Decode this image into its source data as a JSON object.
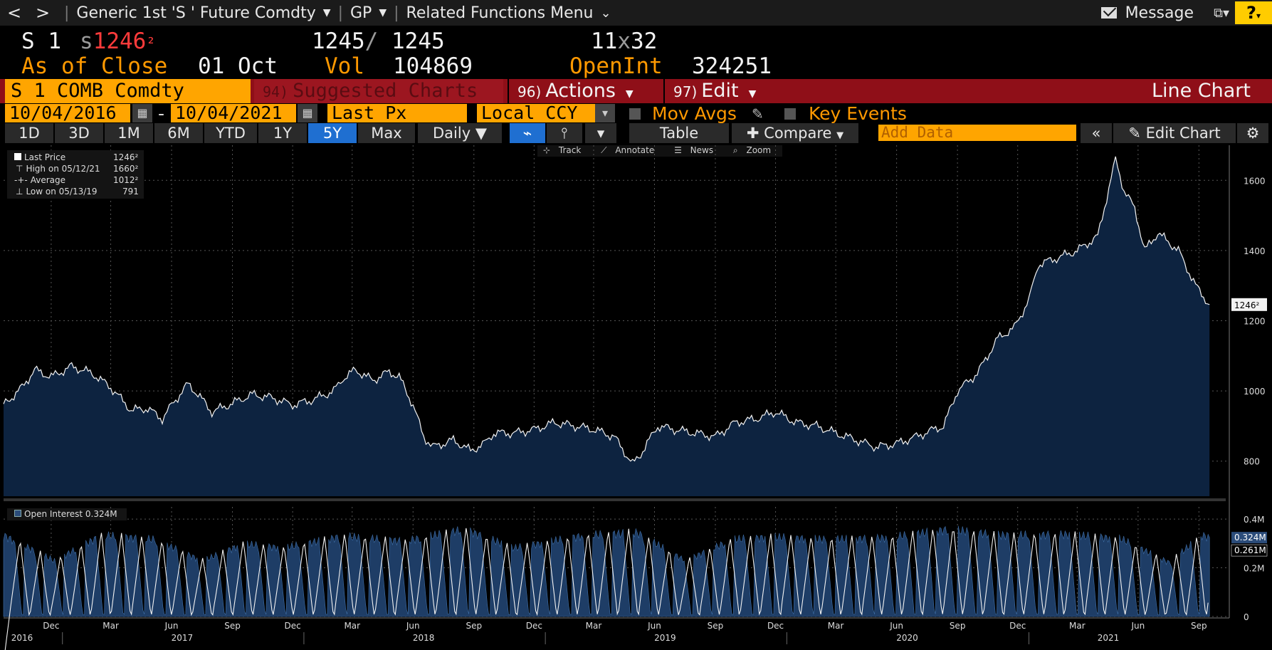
{
  "topbar": {
    "back": "<",
    "forward": ">",
    "security": "Generic 1st 'S ' Future Comdty",
    "gp": "GP",
    "related": "Related Functions Menu",
    "message": "Message",
    "help": "?"
  },
  "quote": {
    "ticker": "S 1",
    "tick_prefix": "s",
    "last_whole": "1246",
    "last_frac": "²",
    "bid": "1245",
    "slash": "/",
    "ask": "1245",
    "size_bid": "11",
    "size_x": "x",
    "size_ask": "32",
    "as_of_label": "As of Close",
    "as_of_date": "01 Oct",
    "vol_label": "Vol",
    "vol_value": "104869",
    "oi_label": "OpenInt",
    "oi_value": "324251"
  },
  "actionbar": {
    "ticker": "S 1 COMB Comdty",
    "suggested_num": "94)",
    "suggested": "Suggested Charts",
    "actions_num": "96)",
    "actions": "Actions",
    "edit_num": "97)",
    "edit": "Edit",
    "chart_type": "Line Chart"
  },
  "daterow": {
    "start": "10/04/2016",
    "dash": "-",
    "end": "10/04/2021",
    "field": "Last Px",
    "currency": "Local CCY",
    "mov_avgs": "Mov Avgs",
    "key_events": "Key Events"
  },
  "toolbar": {
    "periods": [
      "1D",
      "3D",
      "1M",
      "6M",
      "YTD",
      "1Y",
      "5Y",
      "Max"
    ],
    "active_period": "5Y",
    "frequency": "Daily",
    "table": "Table",
    "compare": "Compare",
    "add_data_placeholder": "Add Data",
    "edit_chart": "Edit Chart"
  },
  "subtools": {
    "track": "Track",
    "annotate": "Annotate",
    "news": "News",
    "zoom": "Zoom"
  },
  "legend_top": {
    "rows": [
      {
        "label": "Last Price",
        "value": "1246²"
      },
      {
        "label": "High on 05/12/21",
        "value": "1660²"
      },
      {
        "label": "Average",
        "value": "1012²"
      },
      {
        "label": "Low on 05/13/19",
        "value": "791"
      }
    ]
  },
  "legend_bottom": {
    "label": "Open Interest 0.324M"
  },
  "colors": {
    "fill": "#0d2340",
    "line": "#f2f2f2",
    "orange": "#ffa500",
    "accent_red": "#8f0f18",
    "active_blue": "#1f6fd1"
  },
  "chart_data": {
    "type": "area",
    "price": {
      "x": [
        "2016-10-04",
        "2016-11-01",
        "2016-11-20",
        "2016-12-15",
        "2017-01-15",
        "2017-02-15",
        "2017-03-15",
        "2017-04-15",
        "2017-05-10",
        "2017-06-01",
        "2017-06-15",
        "2017-07-10",
        "2017-07-25",
        "2017-08-15",
        "2017-09-15",
        "2017-10-15",
        "2017-11-15",
        "2017-12-15",
        "2018-01-15",
        "2018-02-15",
        "2018-03-01",
        "2018-03-20",
        "2018-04-15",
        "2018-05-10",
        "2018-05-25",
        "2018-06-15",
        "2018-07-01",
        "2018-07-15",
        "2018-08-15",
        "2018-09-10",
        "2018-10-01",
        "2018-10-15",
        "2018-11-15",
        "2018-12-15",
        "2019-01-15",
        "2019-02-15",
        "2019-03-15",
        "2019-04-15",
        "2019-05-13",
        "2019-05-25",
        "2019-06-20",
        "2019-07-15",
        "2019-08-15",
        "2019-09-15",
        "2019-10-15",
        "2019-11-15",
        "2019-12-15",
        "2020-01-15",
        "2020-02-15",
        "2020-03-15",
        "2020-04-15",
        "2020-05-15",
        "2020-06-15",
        "2020-07-15",
        "2020-08-10",
        "2020-08-25",
        "2020-09-15",
        "2020-10-15",
        "2020-11-15",
        "2020-12-10",
        "2021-01-01",
        "2021-01-15",
        "2021-02-15",
        "2021-03-15",
        "2021-04-15",
        "2021-05-12",
        "2021-05-25",
        "2021-06-10",
        "2021-06-25",
        "2021-07-15",
        "2021-08-15",
        "2021-09-10",
        "2021-10-01"
      ],
      "y": [
        960,
        1010,
        1060,
        1040,
        1070,
        1050,
        1010,
        945,
        950,
        920,
        960,
        1020,
        990,
        940,
        965,
        990,
        980,
        960,
        975,
        1000,
        1035,
        1060,
        1030,
        1055,
        1040,
        960,
        870,
        840,
        860,
        830,
        850,
        880,
        880,
        890,
        910,
        900,
        890,
        870,
        791,
        820,
        900,
        890,
        880,
        870,
        910,
        920,
        940,
        910,
        900,
        880,
        860,
        840,
        850,
        870,
        890,
        900,
        1000,
        1050,
        1150,
        1180,
        1260,
        1360,
        1380,
        1400,
        1440,
        1660,
        1570,
        1520,
        1400,
        1450,
        1400,
        1300,
        1246
      ]
    },
    "open_interest": {
      "x": [
        "2016-10-04",
        "2016-12-20",
        "2017-03-01",
        "2017-05-20",
        "2017-08-01",
        "2017-10-01",
        "2017-12-01",
        "2018-03-01",
        "2018-06-01",
        "2018-09-01",
        "2018-11-15",
        "2019-03-01",
        "2019-05-20",
        "2019-08-01",
        "2019-10-10",
        "2019-12-10",
        "2020-03-01",
        "2020-06-01",
        "2020-09-01",
        "2020-11-20",
        "2021-03-01",
        "2021-05-20",
        "2021-08-01",
        "2021-09-20",
        "2021-10-01"
      ],
      "y": [
        0.35,
        0.05,
        0.35,
        0.3,
        0.05,
        0.25,
        0.2,
        0.34,
        0.28,
        0.42,
        0.2,
        0.35,
        0.38,
        0.05,
        0.3,
        0.33,
        0.3,
        0.32,
        0.42,
        0.35,
        0.36,
        0.31,
        0.03,
        0.35,
        0.324
      ],
      "avg_label": "0.261M",
      "last_label": "0.324M"
    },
    "y_ticks": [
      "800",
      "1000",
      "1200",
      "1400",
      "1600"
    ],
    "y_range": [
      700,
      1700
    ],
    "last_label": "1246²",
    "oi_ticks": [
      "0",
      "0.2M",
      "0.4M"
    ],
    "oi_range": [
      0,
      0.45
    ],
    "x_months": [
      "Dec",
      "Mar",
      "Jun",
      "Sep",
      "Dec",
      "Mar",
      "Jun",
      "Sep",
      "Dec",
      "Mar",
      "Jun",
      "Sep",
      "Dec",
      "Mar",
      "Jun",
      "Sep",
      "Dec",
      "Mar",
      "Jun",
      "Sep"
    ],
    "x_years": [
      "2016",
      "2017",
      "2018",
      "2019",
      "2020",
      "2021"
    ],
    "x_range": [
      "2016-10-04",
      "2021-10-04"
    ]
  }
}
